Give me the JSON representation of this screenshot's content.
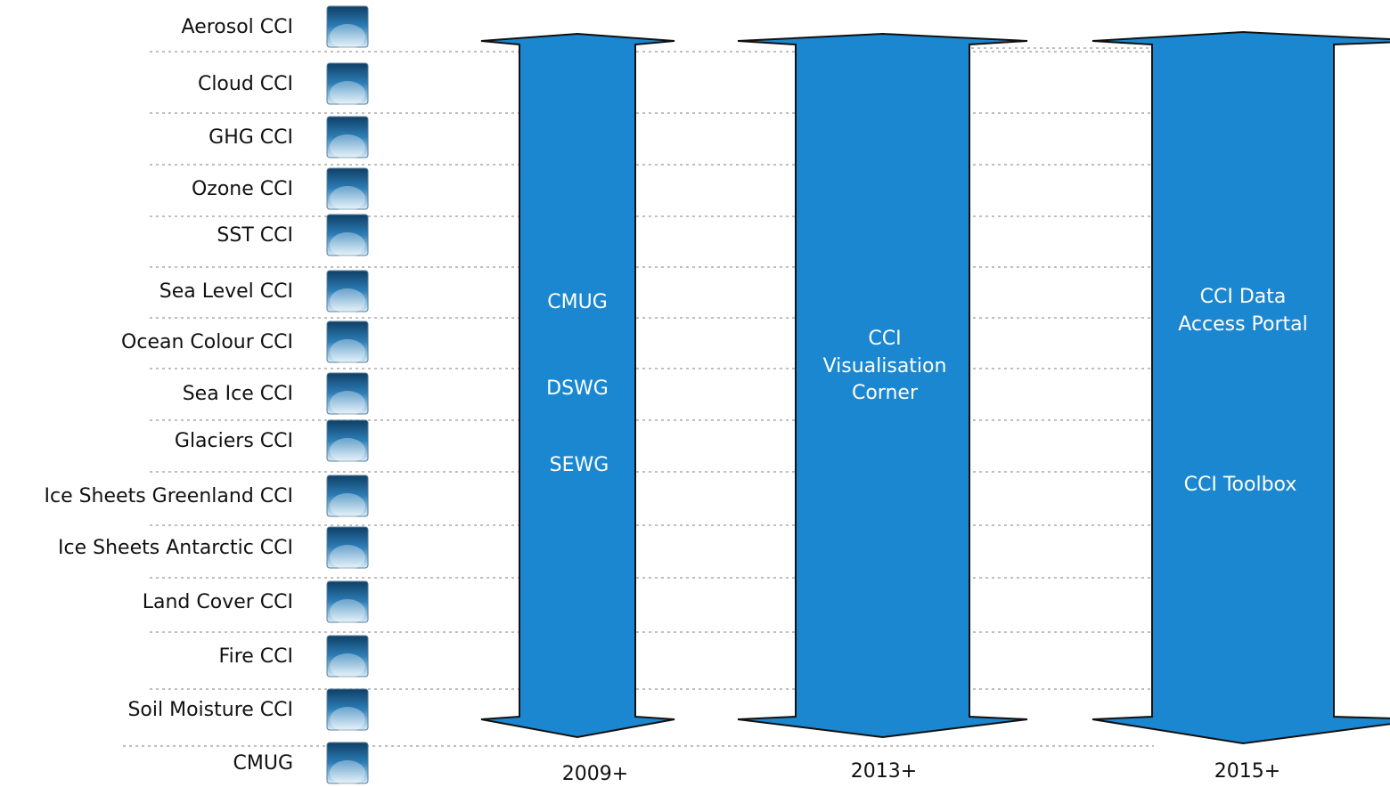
{
  "projects": [
    "Aerosol CCI",
    "Cloud CCI",
    "GHG CCI",
    "Ozone CCI",
    "SST CCI",
    "Sea Level CCI",
    "Ocean Colour CCI",
    "Sea Ice CCI",
    "Glaciers CCI",
    "Ice Sheets Greenland CCI",
    "Ice Sheets Antarctic CCI",
    "Land Cover CCI",
    "Fire CCI",
    "Soil Moisture CCI",
    "CMUG"
  ],
  "arrows": [
    {
      "labels": [
        "CMUG",
        "DSWG",
        "SEWG"
      ],
      "year": "2009+"
    },
    {
      "labels": [
        "CCI",
        "Visualisation",
        "Corner"
      ],
      "year": "2013+"
    },
    {
      "labels": [
        "CCI Data",
        "Access Portal",
        "CCI Toolbox"
      ],
      "year": "2015+"
    }
  ]
}
